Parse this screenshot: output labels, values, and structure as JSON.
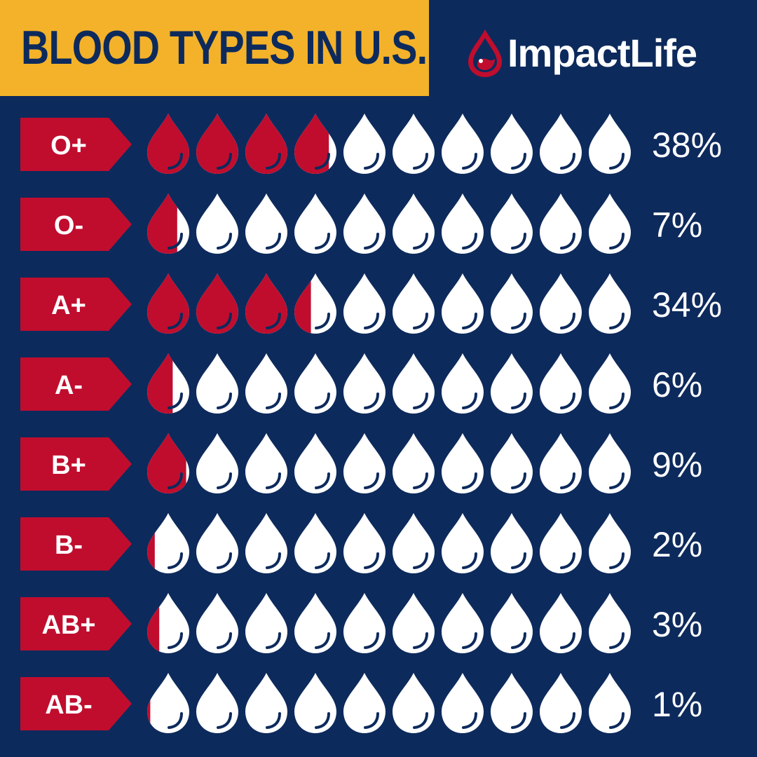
{
  "header": {
    "title": "BLOOD TYPES IN U.S.",
    "logo_text": "ImpactLife",
    "logo_icon": "blood-drop-icon"
  },
  "colors": {
    "background": "#0d2a5c",
    "title_bar": "#f3b229",
    "blood_red": "#c00d2e",
    "drop_white": "#ffffff"
  },
  "chart_data": {
    "type": "pictogram",
    "icon": "blood-drop",
    "icons_per_row": 10,
    "percent_per_icon": 10,
    "categories": [
      "O+",
      "O-",
      "A+",
      "A-",
      "B+",
      "B-",
      "AB+",
      "AB-"
    ],
    "values": [
      38,
      7,
      34,
      6,
      9,
      2,
      3,
      1
    ],
    "value_labels": [
      "38%",
      "7%",
      "34%",
      "6%",
      "9%",
      "2%",
      "3%",
      "1%"
    ],
    "unit": "%"
  }
}
